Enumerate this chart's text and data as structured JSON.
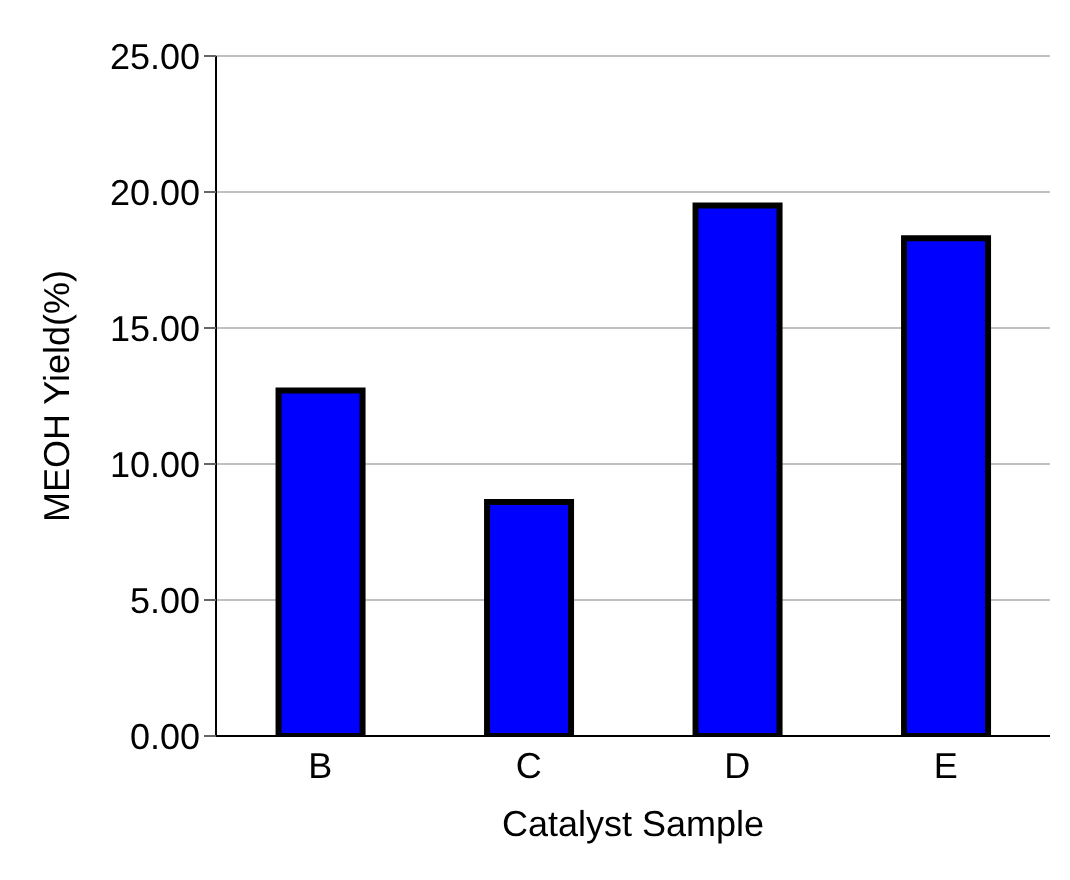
{
  "chart_data": {
    "type": "bar",
    "xlabel": "Catalyst Sample",
    "ylabel": "MEOH Yield(%)",
    "categories": [
      "B",
      "C",
      "D",
      "E"
    ],
    "values": [
      12.7,
      8.6,
      19.5,
      18.3
    ],
    "color": "#0000ff",
    "ylim": [
      0,
      25
    ],
    "yticks": [
      {
        "value": 0,
        "label": "0.00"
      },
      {
        "value": 5,
        "label": "5.00"
      },
      {
        "value": 10,
        "label": "10.00"
      },
      {
        "value": 15,
        "label": "15.00"
      },
      {
        "value": 20,
        "label": "20.00"
      },
      {
        "value": 25,
        "label": "25.00"
      }
    ],
    "grid": "y"
  }
}
